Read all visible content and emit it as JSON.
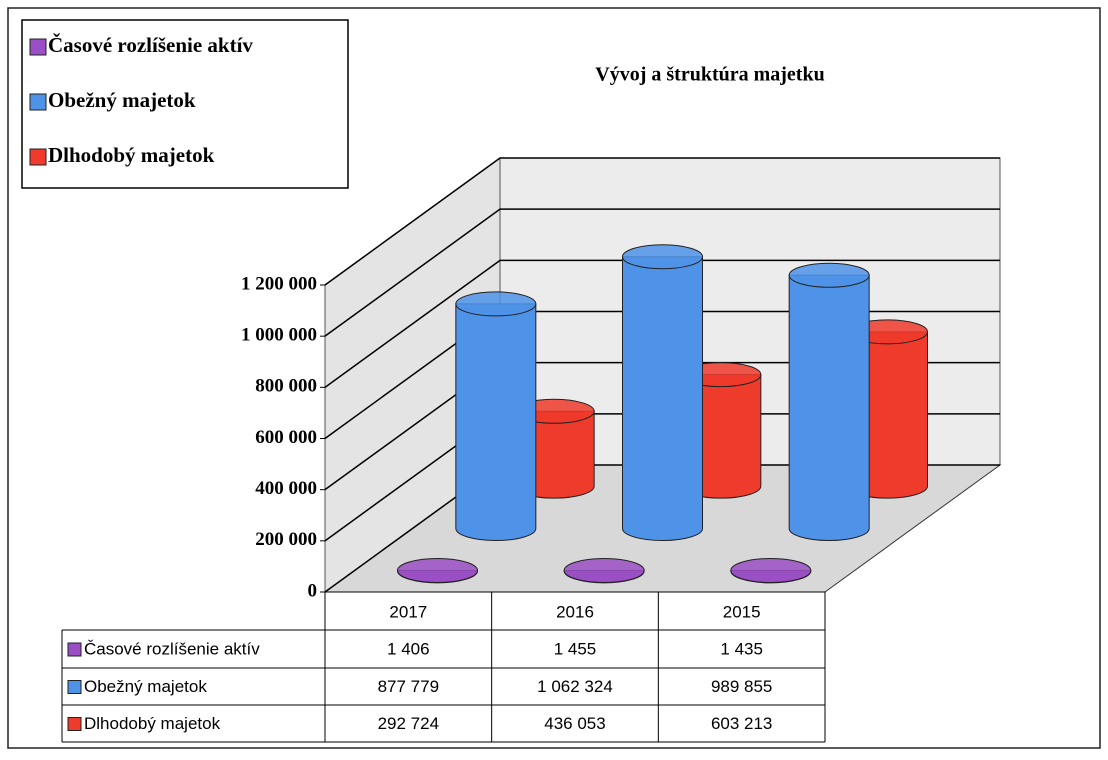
{
  "chart_data": {
    "type": "bar",
    "title": "Vývoj a štruktúra majetku",
    "categories": [
      "2017",
      "2016",
      "2015"
    ],
    "series": [
      {
        "name": "Časové rozlíšenie aktív",
        "color": "#9b4fc4",
        "values": [
          1406,
          1455,
          1435
        ],
        "value_labels": [
          "1 406",
          "1 455",
          "1 435"
        ]
      },
      {
        "name": "Obežný majetok",
        "color": "#4f93e8",
        "values": [
          877779,
          1062324,
          989855
        ],
        "value_labels": [
          "877 779",
          "1 062 324",
          "989 855"
        ]
      },
      {
        "name": "Dlhodobý majetok",
        "color": "#ee3b2c",
        "values": [
          292724,
          436053,
          603213
        ],
        "value_labels": [
          "292 724",
          "436 053",
          "603 213"
        ]
      }
    ],
    "ylim": [
      0,
      1200000
    ],
    "yticks": [
      0,
      {
        "value": 200000,
        "label": "200 000"
      },
      {
        "value": 400000,
        "label": "400 000"
      },
      {
        "value": 600000,
        "label": "600 000"
      },
      {
        "value": 800000,
        "label": "800 000"
      },
      {
        "value": 1000000,
        "label": "1 000 000"
      },
      {
        "value": 1200000,
        "label": "1 200 000"
      }
    ],
    "grid": true,
    "legend": "top-left",
    "data_table": true
  }
}
